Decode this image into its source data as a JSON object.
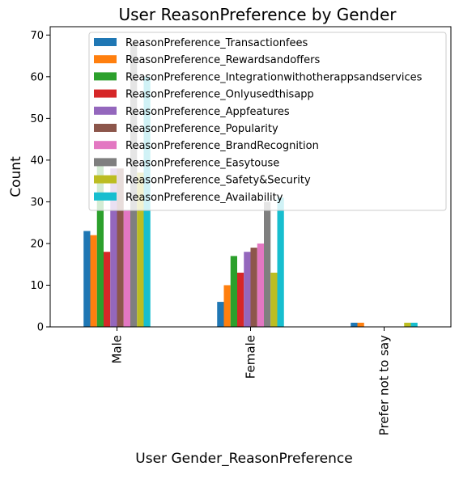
{
  "chart_data": {
    "type": "bar",
    "title": "User ReasonPreference by Gender",
    "xlabel": "User Gender_ReasonPreference",
    "ylabel": "Count",
    "ylim": [
      0,
      72
    ],
    "yticks": [
      0,
      10,
      20,
      30,
      40,
      50,
      60,
      70
    ],
    "grid": false,
    "legend_position": "top-right",
    "categories": [
      "Male",
      "Female",
      "Prefer not to say"
    ],
    "series": [
      {
        "name": "ReasonPreference_Transactionfees",
        "color": "#1f77b4",
        "values": [
          23,
          6,
          1
        ]
      },
      {
        "name": "ReasonPreference_Rewardsandoffers",
        "color": "#ff7f0e",
        "values": [
          22,
          10,
          1
        ]
      },
      {
        "name": "ReasonPreference_Integrationwithotherappsandservices",
        "color": "#2ca02c",
        "values": [
          39,
          17,
          0
        ]
      },
      {
        "name": "ReasonPreference_Onlyusedthisapp",
        "color": "#d62728",
        "values": [
          18,
          13,
          0
        ]
      },
      {
        "name": "ReasonPreference_Appfeatures",
        "color": "#9467bd",
        "values": [
          38,
          18,
          0
        ]
      },
      {
        "name": "ReasonPreference_Popularity",
        "color": "#8c564b",
        "values": [
          38,
          19,
          0
        ]
      },
      {
        "name": "ReasonPreference_BrandRecognition",
        "color": "#e377c2",
        "values": [
          28,
          20,
          0
        ]
      },
      {
        "name": "ReasonPreference_Easytouse",
        "color": "#7f7f7f",
        "values": [
          68,
          30,
          0
        ]
      },
      {
        "name": "ReasonPreference_Safety&Security",
        "color": "#bcbd22",
        "values": [
          37,
          13,
          1
        ]
      },
      {
        "name": "ReasonPreference_Availability",
        "color": "#17becf",
        "values": [
          60,
          31,
          1
        ]
      }
    ]
  }
}
